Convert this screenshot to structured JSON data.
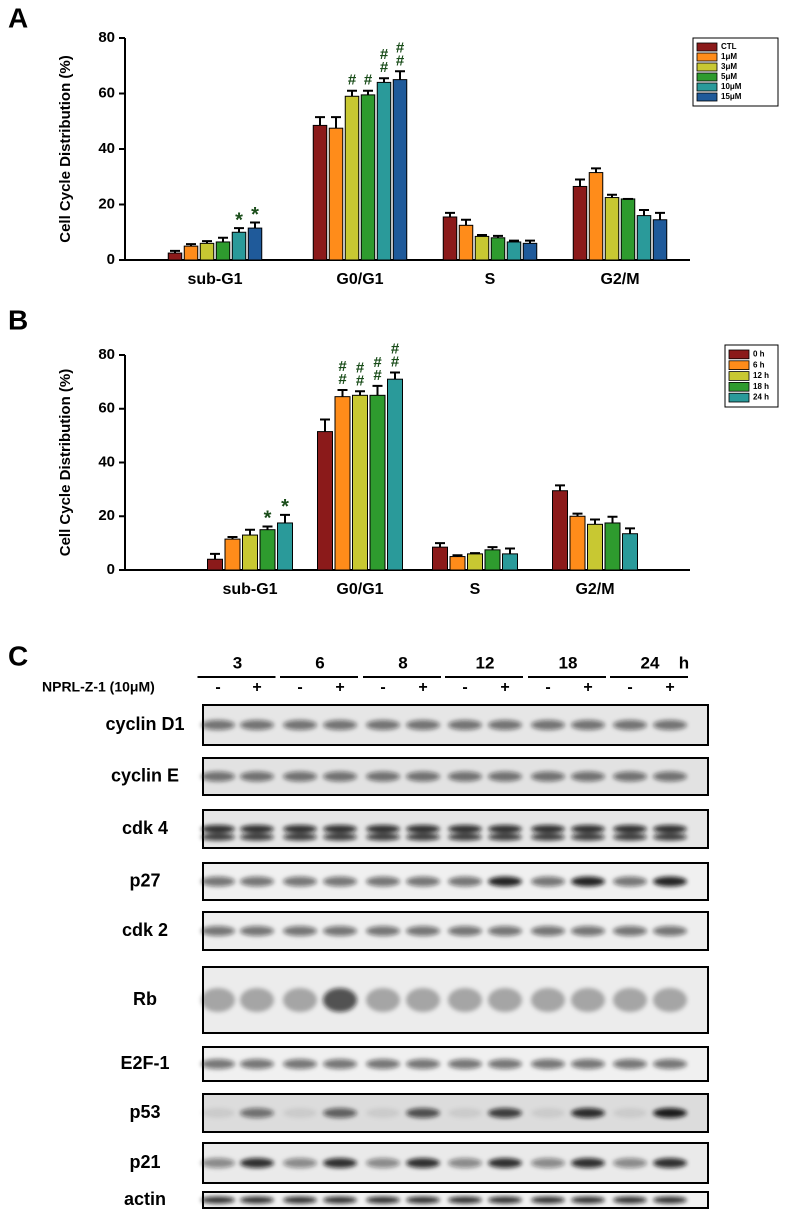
{
  "chart_data": [
    {
      "type": "bar",
      "panel": "A",
      "y_label": "Cell Cycle Distribution (%)",
      "categories": [
        "sub-G1",
        "G0/G1",
        "S",
        "G2/M"
      ],
      "ylim": [
        0,
        80
      ],
      "yticks": [
        0,
        20,
        40,
        60,
        80
      ],
      "legend": "top-right",
      "series": [
        {
          "name": "CTL",
          "color": "#8b1a1a",
          "values": [
            2.5,
            48.5,
            15.5,
            26.5
          ],
          "errors": [
            0.8,
            3,
            1.5,
            2.5
          ],
          "markers": [
            null,
            null,
            null,
            null
          ]
        },
        {
          "name": "1μM",
          "color": "#ff8c1a",
          "values": [
            5,
            47.5,
            12.5,
            31.5
          ],
          "errors": [
            0.7,
            4,
            2,
            1.5
          ],
          "markers": [
            null,
            null,
            null,
            null
          ]
        },
        {
          "name": "3μM",
          "color": "#c8c832",
          "values": [
            6,
            59,
            8.5,
            22.5
          ],
          "errors": [
            0.8,
            2,
            0.5,
            1
          ],
          "markers": [
            null,
            [
              "#"
            ],
            null,
            null
          ]
        },
        {
          "name": "5μM",
          "color": "#2e9b2e",
          "values": [
            6.5,
            59.5,
            8,
            22
          ],
          "errors": [
            1.5,
            1.5,
            0.7,
            0
          ],
          "markers": [
            null,
            [
              "#"
            ],
            null,
            null
          ]
        },
        {
          "name": "10μM",
          "color": "#2a9a9a",
          "values": [
            10,
            64,
            6.5,
            16
          ],
          "errors": [
            1.5,
            1.5,
            0.5,
            2
          ],
          "markers": [
            [
              "*"
            ],
            [
              "#",
              "#"
            ],
            null,
            null
          ]
        },
        {
          "name": "15μM",
          "color": "#1f5a9a",
          "values": [
            11.5,
            65,
            6,
            14.5
          ],
          "errors": [
            2,
            3,
            1,
            2.5
          ],
          "markers": [
            [
              "*"
            ],
            [
              "#",
              "#"
            ],
            null,
            null
          ]
        }
      ]
    },
    {
      "type": "bar",
      "panel": "B",
      "y_label": "Cell Cycle Distribution (%)",
      "categories": [
        "sub-G1",
        "G0/G1",
        "S",
        "G2/M"
      ],
      "ylim": [
        0,
        80
      ],
      "yticks": [
        0,
        20,
        40,
        60,
        80
      ],
      "legend": "top-right",
      "series": [
        {
          "name": "0 h",
          "color": "#8b1a1a",
          "values": [
            4,
            51.5,
            8.5,
            29.5
          ],
          "errors": [
            2,
            4.5,
            1.5,
            2
          ],
          "markers": [
            null,
            null,
            null,
            null
          ]
        },
        {
          "name": "6 h",
          "color": "#ff8c1a",
          "values": [
            11.5,
            64.5,
            5,
            20
          ],
          "errors": [
            0.8,
            2.5,
            0.5,
            1
          ],
          "markers": [
            null,
            [
              "#",
              "#"
            ],
            null,
            null
          ]
        },
        {
          "name": "12 h",
          "color": "#c8c832",
          "values": [
            13,
            65,
            6,
            17
          ],
          "errors": [
            2,
            1.5,
            0.3,
            1.8
          ],
          "markers": [
            null,
            [
              "#",
              "#"
            ],
            null,
            null
          ]
        },
        {
          "name": "18 h",
          "color": "#2e9b2e",
          "values": [
            15,
            65,
            7.5,
            17.5
          ],
          "errors": [
            1.2,
            3.5,
            1,
            2.3
          ],
          "markers": [
            [
              "*"
            ],
            [
              "#",
              "#"
            ],
            null,
            null
          ]
        },
        {
          "name": "24 h",
          "color": "#2a9a9a",
          "values": [
            17.5,
            71,
            6,
            13.5
          ],
          "errors": [
            3,
            2.5,
            2,
            2
          ],
          "markers": [
            [
              "*"
            ],
            [
              "#",
              "#"
            ],
            null,
            null
          ]
        }
      ]
    }
  ],
  "blot": {
    "panel": "C",
    "treatment": "NPRL-Z-1 (10μM)",
    "times": [
      "3",
      "6",
      "8",
      "12",
      "18",
      "24"
    ],
    "time_unit": "h",
    "lanes": [
      "-",
      "+",
      "-",
      "+",
      "-",
      "+",
      "-",
      "+",
      "-",
      "+",
      "-",
      "+"
    ],
    "rows": [
      "cyclin D1",
      "cyclin E",
      "cdk 4",
      "p27",
      "cdk 2",
      "Rb",
      "E2F-1",
      "p53",
      "p21",
      "actin"
    ]
  }
}
